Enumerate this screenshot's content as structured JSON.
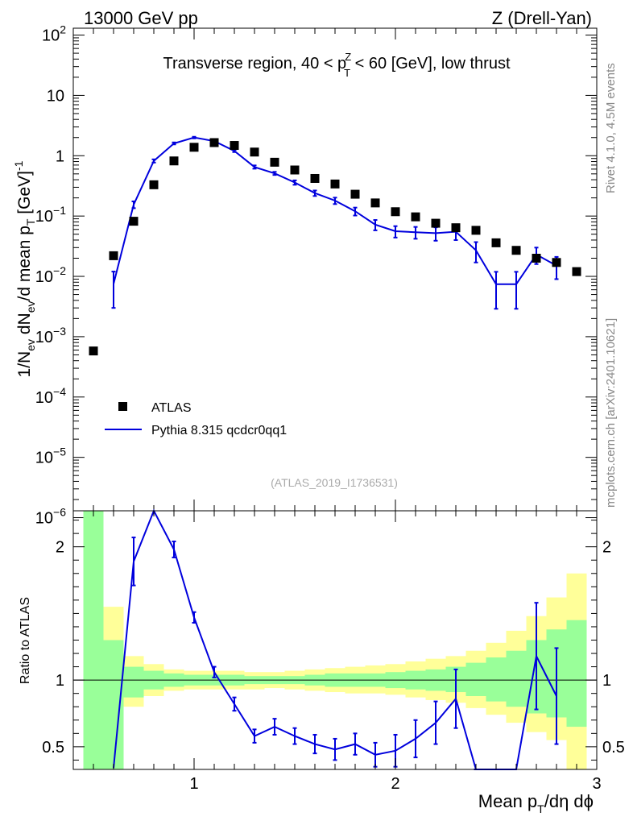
{
  "header": {
    "left": "13000 GeV pp",
    "right": "Z (Drell-Yan)",
    "side_top": "Rivet 4.1.0,  4.5M events",
    "side_bottom": "mcplots.cern.ch [arXiv:2401.10621]"
  },
  "colors": {
    "data": "#000000",
    "mc": "#0000dd",
    "band_inner": "#99ff99",
    "band_outer": "#ffff99"
  },
  "chart_data": [
    {
      "type": "scatter",
      "panel": "main",
      "title": "Transverse region, 40 < p_T^Z < 60 [GeV], low thrust",
      "title_parts": [
        "Transverse region, 40 < p",
        "Z",
        "T",
        " < 60 [GeV], low thrust"
      ],
      "ylabel": "1/N_ev dN_ev/d mean p_T [GeV]^-1",
      "ylabel_parts": [
        "1/N",
        "ev",
        " dN",
        "ev",
        "/d mean p",
        "T",
        " [GeV]",
        "-1"
      ],
      "yscale": "log",
      "ylim": [
        1.3e-06,
        130
      ],
      "xlim": [
        0.4,
        3.0
      ],
      "y_ticks": [
        {
          "v": 100,
          "m": "10",
          "e": "2"
        },
        {
          "v": 10,
          "m": "10",
          "e": ""
        },
        {
          "v": 1,
          "m": "1",
          "e": ""
        },
        {
          "v": 0.1,
          "m": "10",
          "e": "−1"
        },
        {
          "v": 0.01,
          "m": "10",
          "e": "−2"
        },
        {
          "v": 0.001,
          "m": "10",
          "e": "−3"
        },
        {
          "v": 0.0001,
          "m": "10",
          "e": "−4"
        },
        {
          "v": 1e-05,
          "m": "10",
          "e": "−5"
        },
        {
          "v": 1e-06,
          "m": "10",
          "e": "−6"
        }
      ],
      "watermark": "(ATLAS_2019_I1736531)",
      "legend": {
        "placement": "bottom-left",
        "entries": [
          {
            "name": "ATLAS",
            "style": "marker"
          },
          {
            "name": "Pythia 8.315 qcdcr0qq1",
            "style": "line"
          }
        ]
      },
      "series": [
        {
          "name": "ATLAS",
          "x": [
            0.5,
            0.6,
            0.7,
            0.8,
            0.9,
            1.0,
            1.1,
            1.2,
            1.3,
            1.4,
            1.5,
            1.6,
            1.7,
            1.8,
            1.9,
            2.0,
            2.1,
            2.2,
            2.3,
            2.4,
            2.5,
            2.6,
            2.7,
            2.8,
            2.9
          ],
          "y": [
            0.00058,
            0.022,
            0.082,
            0.33,
            0.82,
            1.38,
            1.65,
            1.48,
            1.15,
            0.78,
            0.58,
            0.42,
            0.34,
            0.23,
            0.165,
            0.118,
            0.097,
            0.076,
            0.064,
            0.058,
            0.036,
            0.027,
            0.02,
            0.017,
            0.012
          ]
        },
        {
          "name": "Pythia 8.315 qcdcr0qq1",
          "x": [
            0.6,
            0.7,
            0.8,
            0.9,
            1.0,
            1.1,
            1.2,
            1.3,
            1.4,
            1.5,
            1.6,
            1.7,
            1.8,
            1.9,
            2.0,
            2.1,
            2.2,
            2.3,
            2.4,
            2.5,
            2.6,
            2.7,
            2.8
          ],
          "y": [
            0.0075,
            0.155,
            0.82,
            1.6,
            2.0,
            1.75,
            1.2,
            0.65,
            0.51,
            0.36,
            0.24,
            0.18,
            0.12,
            0.072,
            0.056,
            0.054,
            0.052,
            0.055,
            0.027,
            0.0074,
            0.0074,
            0.023,
            0.015
          ],
          "err": [
            0.0045,
            0.02,
            0.05,
            0.06,
            0.06,
            0.06,
            0.05,
            0.04,
            0.03,
            0.03,
            0.025,
            0.022,
            0.018,
            0.014,
            0.012,
            0.012,
            0.013,
            0.015,
            0.01,
            0.0045,
            0.0045,
            0.007,
            0.006
          ]
        }
      ]
    },
    {
      "type": "line",
      "panel": "ratio",
      "ylabel": "Ratio to ATLAS",
      "xlabel": "Mean p_T/dη dϕ",
      "xlabel_parts": [
        "Mean p",
        "T",
        "/dη dϕ"
      ],
      "xlim": [
        0.4,
        3.0
      ],
      "ylim": [
        0.33,
        2.27
      ],
      "y_ticks": [
        0.5,
        1,
        2
      ],
      "x_ticks": [
        1,
        2,
        3
      ],
      "reference": 1,
      "bands": {
        "x_edges": [
          0.45,
          0.55,
          0.65,
          0.75,
          0.85,
          0.95,
          1.05,
          1.15,
          1.25,
          1.35,
          1.45,
          1.55,
          1.65,
          1.75,
          1.85,
          1.95,
          2.05,
          2.15,
          2.25,
          2.35,
          2.45,
          2.55,
          2.65,
          2.75,
          2.85,
          2.95
        ],
        "inner_low": [
          0.33,
          0.33,
          0.87,
          0.93,
          0.95,
          0.96,
          0.96,
          0.96,
          0.97,
          0.97,
          0.97,
          0.96,
          0.95,
          0.95,
          0.95,
          0.94,
          0.93,
          0.92,
          0.91,
          0.88,
          0.84,
          0.8,
          0.75,
          0.72,
          0.65
        ],
        "inner_high": [
          2.27,
          1.3,
          1.1,
          1.07,
          1.05,
          1.04,
          1.04,
          1.04,
          1.03,
          1.03,
          1.03,
          1.04,
          1.05,
          1.05,
          1.05,
          1.06,
          1.07,
          1.08,
          1.1,
          1.13,
          1.17,
          1.22,
          1.3,
          1.38,
          1.45
        ],
        "outer_low": [
          0.33,
          0.33,
          0.8,
          0.88,
          0.92,
          0.93,
          0.93,
          0.93,
          0.93,
          0.94,
          0.93,
          0.92,
          0.91,
          0.9,
          0.9,
          0.89,
          0.87,
          0.85,
          0.83,
          0.79,
          0.74,
          0.68,
          0.61,
          0.55,
          0.33
        ],
        "outer_high": [
          2.27,
          1.55,
          1.18,
          1.12,
          1.08,
          1.07,
          1.07,
          1.07,
          1.06,
          1.06,
          1.07,
          1.08,
          1.09,
          1.1,
          1.11,
          1.12,
          1.14,
          1.16,
          1.18,
          1.22,
          1.28,
          1.37,
          1.48,
          1.62,
          1.8
        ]
      },
      "series": [
        {
          "name": "Pythia 8.315 qcdcr0qq1 / ATLAS",
          "x": [
            0.6,
            0.7,
            0.8,
            0.9,
            1.0,
            1.1,
            1.2,
            1.3,
            1.4,
            1.5,
            1.6,
            1.7,
            1.8,
            1.9,
            2.0,
            2.1,
            2.2,
            2.3,
            2.4,
            2.5,
            2.6,
            2.7,
            2.8
          ],
          "y": [
            0.34,
            1.89,
            2.27,
            1.98,
            1.47,
            1.06,
            0.82,
            0.58,
            0.65,
            0.58,
            0.52,
            0.48,
            0.52,
            0.44,
            0.47,
            0.56,
            0.68,
            0.86,
            0.33,
            0.33,
            0.33,
            1.18,
            0.88
          ],
          "err": [
            0.0,
            0.18,
            0.0,
            0.06,
            0.04,
            0.04,
            0.05,
            0.05,
            0.06,
            0.06,
            0.07,
            0.08,
            0.08,
            0.09,
            0.12,
            0.14,
            0.16,
            0.22,
            0.0,
            0.0,
            0.0,
            0.4,
            0.36
          ],
          "show_err": [
            false,
            true,
            false,
            true,
            true,
            true,
            true,
            true,
            true,
            true,
            true,
            true,
            true,
            true,
            true,
            true,
            true,
            true,
            true,
            false,
            false,
            true,
            true
          ]
        }
      ]
    }
  ]
}
